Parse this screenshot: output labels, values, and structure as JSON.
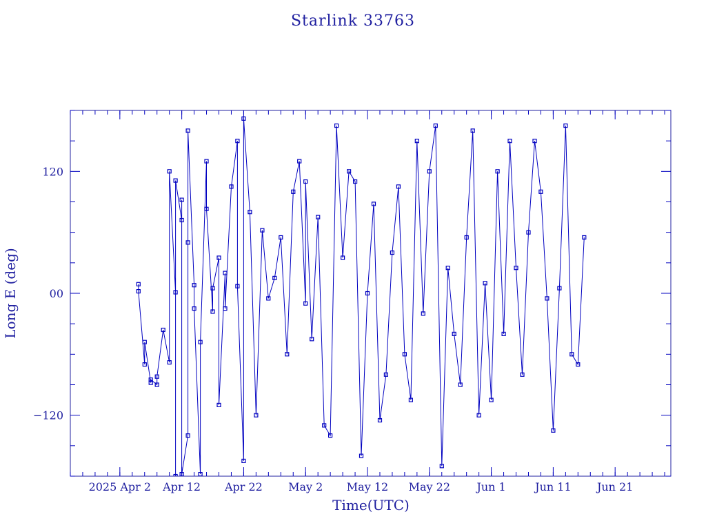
{
  "chart_data": {
    "type": "scatter",
    "title": "Starlink 33763",
    "xlabel": "Time(UTC)",
    "ylabel": "Long E (deg)",
    "x_ticks": [
      "2025 Apr  2",
      "Apr 12",
      "Apr 22",
      "May  2",
      "May 12",
      "May 22",
      "Jun  1",
      "Jun 11",
      "Jun 21"
    ],
    "xlim": [
      "2025-03-25",
      "2025-06-30"
    ],
    "y_ticks": [
      -120,
      0,
      120
    ],
    "y_tick_labels": [
      "−120",
      "00",
      "120"
    ],
    "ylim": [
      -180,
      180
    ],
    "grid": false,
    "legend": "none",
    "line_color": "#0000c0",
    "marker_color": "#0000c0",
    "series": [
      {
        "x": [
          "2025-04-05",
          "2025-04-05",
          "2025-04-06",
          "2025-04-06",
          "2025-04-07",
          "2025-04-07",
          "2025-04-08",
          "2025-04-08",
          "2025-04-09",
          "2025-04-10",
          "2025-04-10",
          "2025-04-11",
          "2025-04-11",
          "2025-04-11",
          "2025-04-12",
          "2025-04-12",
          "2025-04-12",
          "2025-04-13",
          "2025-04-13",
          "2025-04-13",
          "2025-04-14",
          "2025-04-14",
          "2025-04-15",
          "2025-04-15",
          "2025-04-16",
          "2025-04-16",
          "2025-04-17",
          "2025-04-17",
          "2025-04-18",
          "2025-04-18",
          "2025-04-19",
          "2025-04-19",
          "2025-04-20",
          "2025-04-21",
          "2025-04-21",
          "2025-04-22",
          "2025-04-22",
          "2025-04-23",
          "2025-04-24",
          "2025-04-25",
          "2025-04-26",
          "2025-04-27",
          "2025-04-28",
          "2025-04-29",
          "2025-04-30",
          "2025-05-01",
          "2025-05-02",
          "2025-05-02",
          "2025-05-03",
          "2025-05-04",
          "2025-05-05",
          "2025-05-06",
          "2025-05-07",
          "2025-05-08",
          "2025-05-09",
          "2025-05-10",
          "2025-05-11",
          "2025-05-12",
          "2025-05-13",
          "2025-05-14",
          "2025-05-15",
          "2025-05-16",
          "2025-05-17",
          "2025-05-18",
          "2025-05-19",
          "2025-05-20",
          "2025-05-21",
          "2025-05-22",
          "2025-05-23",
          "2025-05-24",
          "2025-05-25",
          "2025-05-26",
          "2025-05-27",
          "2025-05-28",
          "2025-05-29",
          "2025-05-30",
          "2025-05-31",
          "2025-06-01",
          "2025-06-02",
          "2025-06-03",
          "2025-06-04",
          "2025-06-05",
          "2025-06-06",
          "2025-06-07",
          "2025-06-08",
          "2025-06-09",
          "2025-06-10",
          "2025-06-11",
          "2025-06-12",
          "2025-06-13",
          "2025-06-14",
          "2025-06-15",
          "2025-06-16"
        ],
        "y": [
          9,
          2,
          -70,
          -48,
          -88,
          -85,
          -90,
          -82,
          -36,
          -68,
          120,
          1,
          -180,
          111,
          72,
          92,
          -178,
          -140,
          50,
          160,
          8,
          -15,
          -178,
          -48,
          130,
          83,
          -18,
          5,
          35,
          -110,
          20,
          -15,
          105,
          150,
          7,
          -165,
          172,
          80,
          -120,
          62,
          -5,
          15,
          55,
          -60,
          100,
          130,
          -10,
          110,
          -45,
          75,
          -130,
          -140,
          165,
          35,
          120,
          110,
          -160,
          0,
          88,
          -125,
          -80,
          40,
          105,
          -60,
          -105,
          150,
          -20,
          120,
          165,
          -170,
          25,
          -40,
          -90,
          55,
          160,
          -120,
          10,
          -105,
          120,
          -40,
          150,
          25,
          -80,
          60,
          150,
          100,
          -5,
          -135,
          5,
          165,
          -60,
          -70,
          55
        ]
      }
    ]
  }
}
